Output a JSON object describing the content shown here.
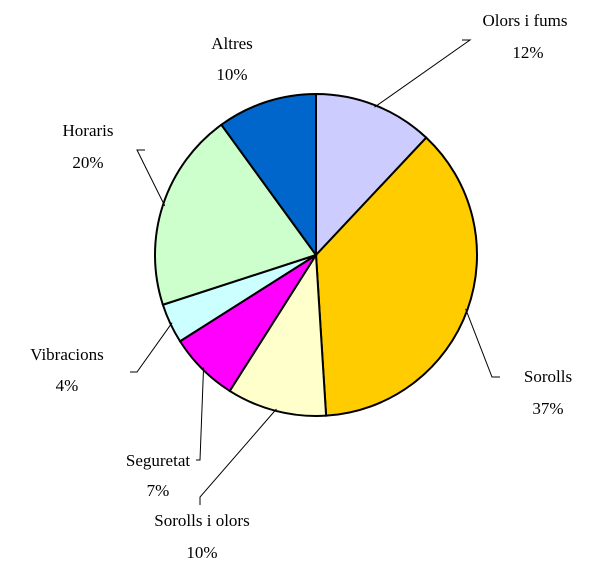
{
  "chart_data": {
    "type": "pie",
    "categories": [
      "Olors i fums",
      "Sorolls",
      "Sorolls i olors",
      "Seguretat",
      "Vibracions",
      "Horaris",
      "Altres"
    ],
    "values": [
      12,
      37,
      10,
      7,
      4,
      20,
      10
    ],
    "value_labels": [
      "12%",
      "37%",
      "10%",
      "7%",
      "4%",
      "20%",
      "10%"
    ],
    "colors": [
      "#ccccff",
      "#ffcc00",
      "#ffffcc",
      "#ff00ff",
      "#ccffff",
      "#ccffcc",
      "#0066cc"
    ]
  }
}
